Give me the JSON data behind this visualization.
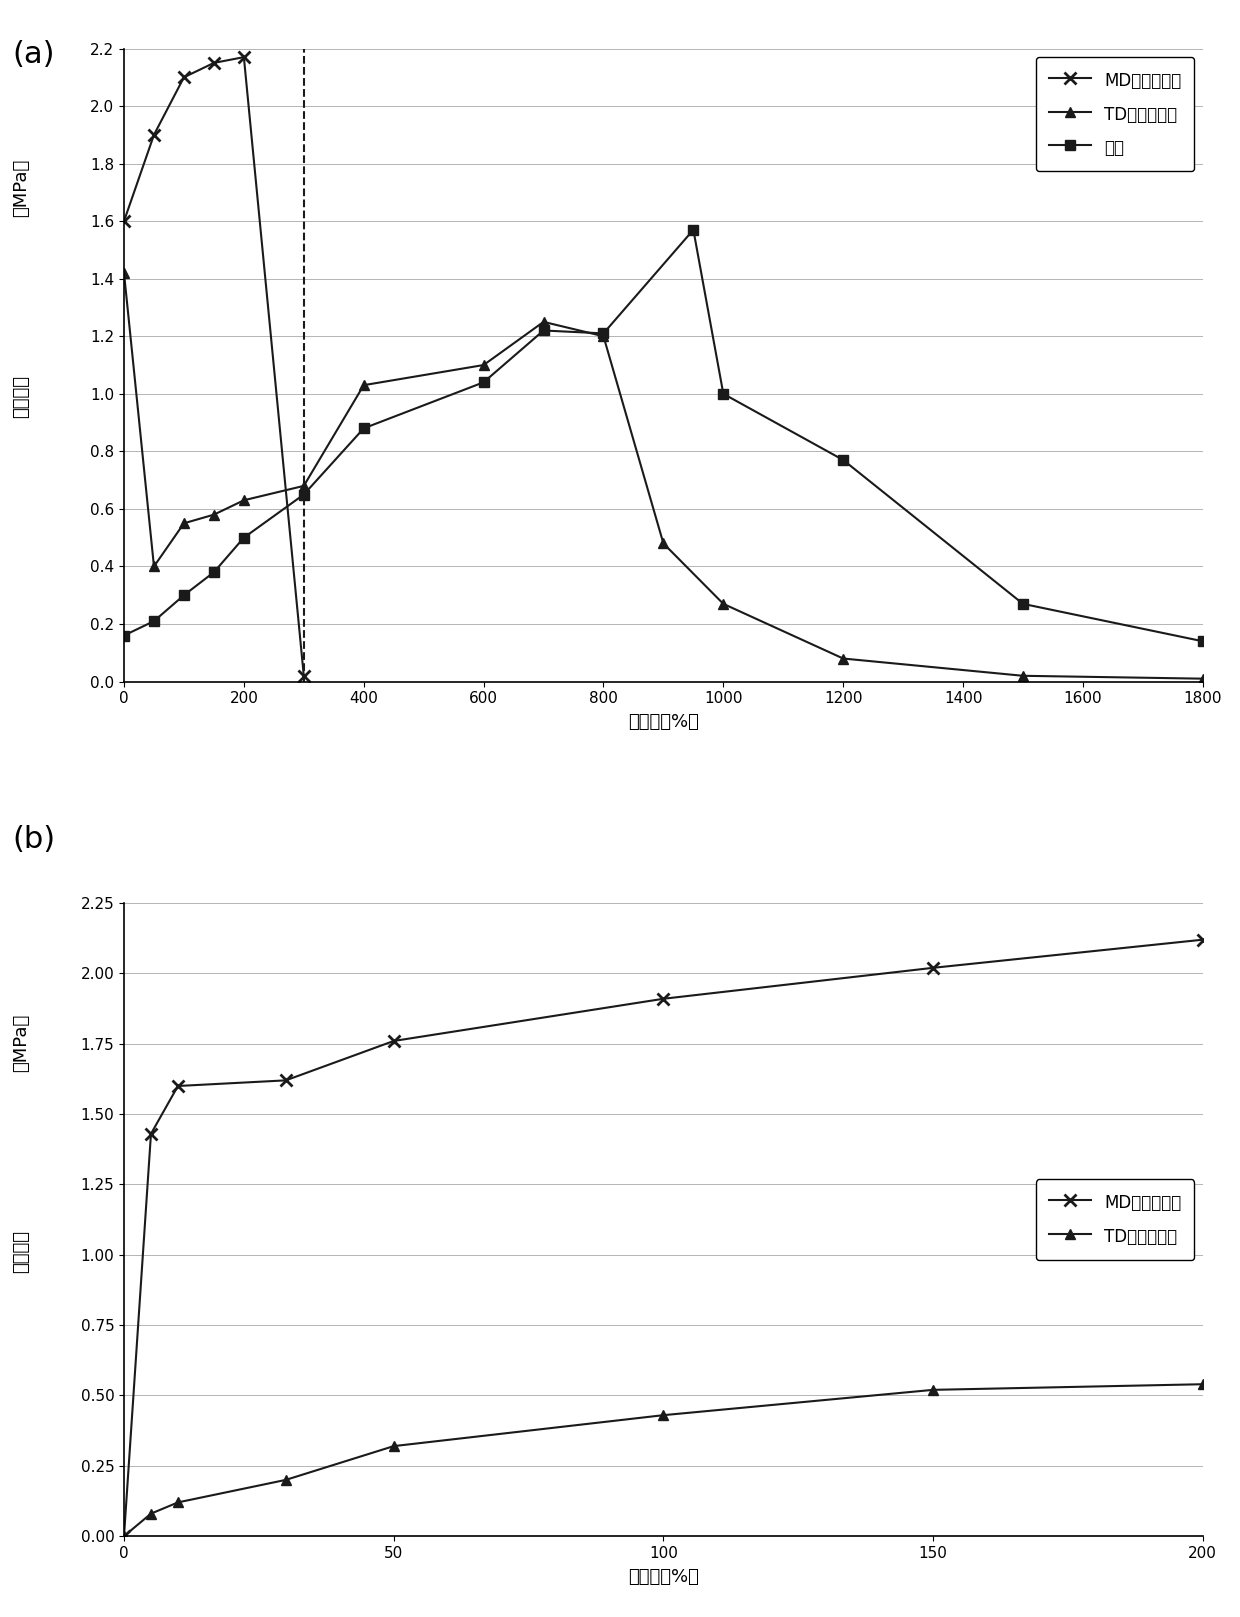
{
  "panel_a": {
    "MD_x": [
      0,
      50,
      100,
      150,
      200,
      300
    ],
    "MD_y": [
      1.6,
      1.9,
      2.1,
      2.15,
      2.17,
      0.02
    ],
    "TD_x": [
      0,
      50,
      100,
      150,
      200,
      300,
      400,
      600,
      700,
      800,
      900,
      1000,
      1200,
      1500,
      1800
    ],
    "TD_y": [
      1.42,
      0.4,
      0.55,
      0.58,
      0.63,
      0.68,
      1.03,
      1.1,
      1.25,
      1.2,
      0.48,
      0.27,
      0.08,
      0.02,
      0.01
    ],
    "Press_x": [
      0,
      50,
      100,
      150,
      200,
      300,
      400,
      600,
      700,
      800,
      950,
      1000,
      1200,
      1500,
      1800
    ],
    "Press_y": [
      0.16,
      0.21,
      0.3,
      0.38,
      0.5,
      0.65,
      0.88,
      1.04,
      1.22,
      1.21,
      1.57,
      1.0,
      0.77,
      0.27,
      0.14
    ],
    "dashed_x": 300,
    "xlim": [
      0,
      1800
    ],
    "ylim": [
      0.0,
      2.2
    ],
    "xticks": [
      0,
      200,
      400,
      600,
      800,
      1000,
      1200,
      1400,
      1600,
      1800
    ],
    "yticks": [
      0.0,
      0.2,
      0.4,
      0.6,
      0.8,
      1.0,
      1.2,
      1.4,
      1.6,
      1.8,
      2.0,
      2.2
    ],
    "xlabel": "伸长率（%）",
    "ylabel_line1": "（MPa）",
    "ylabel_line2": "拉伸强度",
    "legend_MD": "MD：流动方向",
    "legend_TD": "TD：垂直方向",
    "legend_Press": "按压"
  },
  "panel_b": {
    "MD_x": [
      0,
      5,
      10,
      30,
      50,
      100,
      150,
      200
    ],
    "MD_y": [
      0.0,
      1.43,
      1.6,
      1.62,
      1.76,
      1.91,
      2.02,
      2.12
    ],
    "TD_x": [
      0,
      5,
      10,
      30,
      50,
      100,
      150,
      200
    ],
    "TD_y": [
      0.0,
      0.08,
      0.12,
      0.2,
      0.32,
      0.43,
      0.52,
      0.54
    ],
    "xlim": [
      0,
      200
    ],
    "ylim": [
      0.0,
      2.25
    ],
    "xticks": [
      0,
      50,
      100,
      150,
      200
    ],
    "yticks": [
      0.0,
      0.25,
      0.5,
      0.75,
      1.0,
      1.25,
      1.5,
      1.75,
      2.0,
      2.25
    ],
    "xlabel": "伸长率（%）",
    "ylabel_line1": "（MPa）",
    "ylabel_line2": "拉伸强度",
    "legend_MD": "MD：流动方向",
    "legend_TD": "TD：垂直方向"
  },
  "fig_width": 12.4,
  "fig_height": 16.17,
  "panel_label_fontsize": 22,
  "axis_label_fontsize": 13,
  "tick_fontsize": 11,
  "legend_fontsize": 12,
  "line_color": "#1a1a1a",
  "background_color": "#ffffff"
}
